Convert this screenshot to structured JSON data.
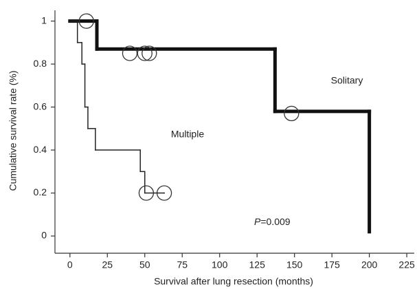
{
  "chart_data": {
    "type": "step",
    "xlabel": "Survival after lung resection (months)",
    "ylabel": "Cumulative survival rate (%)",
    "xlim": [
      -10,
      230
    ],
    "ylim": [
      -0.08,
      1.05
    ],
    "xticks": [
      0,
      25,
      50,
      75,
      100,
      125,
      150,
      175,
      200,
      225
    ],
    "yticks": [
      0,
      0.2,
      0.4,
      0.6,
      0.8,
      1
    ],
    "series": [
      {
        "name": "Solitary",
        "color": "#111111",
        "width": 5,
        "x": [
          0,
          18,
          137,
          200
        ],
        "values": [
          1,
          0.87,
          0.58,
          0.02
        ],
        "censored": {
          "x": [
            11,
            40,
            50,
            53,
            148
          ],
          "values": [
            1,
            0.85,
            0.85,
            0.85,
            0.57
          ]
        }
      },
      {
        "name": "Multiple",
        "color": "#222222",
        "width": 1.5,
        "x": [
          0,
          5,
          8,
          10,
          12,
          17,
          47,
          50,
          63
        ],
        "values": [
          1,
          0.9,
          0.8,
          0.6,
          0.5,
          0.4,
          0.3,
          0.2,
          0.2
        ],
        "censored": {
          "x": [
            51,
            63
          ],
          "values": [
            0.2,
            0.2
          ]
        }
      }
    ],
    "annotations": {
      "p_symbol": "P",
      "p_text": "=0.009"
    }
  }
}
